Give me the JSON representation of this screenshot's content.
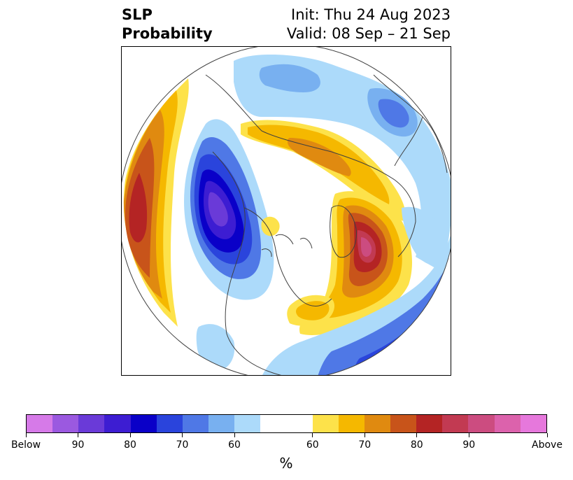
{
  "title": {
    "left_line1": "SLP",
    "left_line2": "Probability",
    "right_line1": "Init: Thu 24 Aug 2023",
    "right_line2": "Valid: 08 Sep – 21 Sep"
  },
  "colors": {
    "below_90plus": "#d67ae8",
    "below_90": "#9b59e0",
    "below_85": "#6a3ad8",
    "below_80": "#3d1dd2",
    "below_75": "#0a00c8",
    "below_70": "#2a44dc",
    "below_65": "#4f78e6",
    "below_60": "#78b0f0",
    "below_55": "#acdafa",
    "neutral": "#ffffff",
    "above_55": "#fde24a",
    "above_60": "#f5b800",
    "above_65": "#e08a10",
    "above_70": "#c8541a",
    "above_75": "#b42424",
    "above_80": "#c23a52",
    "above_85": "#cc4c80",
    "above_90": "#dc62ac",
    "above_90plus": "#e678dc",
    "coastline": "#404040"
  },
  "colorbar": {
    "segments": [
      "below_90plus",
      "below_90",
      "below_85",
      "below_80",
      "below_75",
      "below_70",
      "below_65",
      "below_60",
      "below_55",
      "neutral",
      "above_55",
      "above_60",
      "above_65",
      "above_70",
      "above_75",
      "above_80",
      "above_85",
      "above_90",
      "above_90plus"
    ],
    "ticks": [
      "Below",
      "90",
      "80",
      "70",
      "60",
      "60",
      "70",
      "80",
      "90",
      "Above"
    ],
    "unit": "%"
  }
}
